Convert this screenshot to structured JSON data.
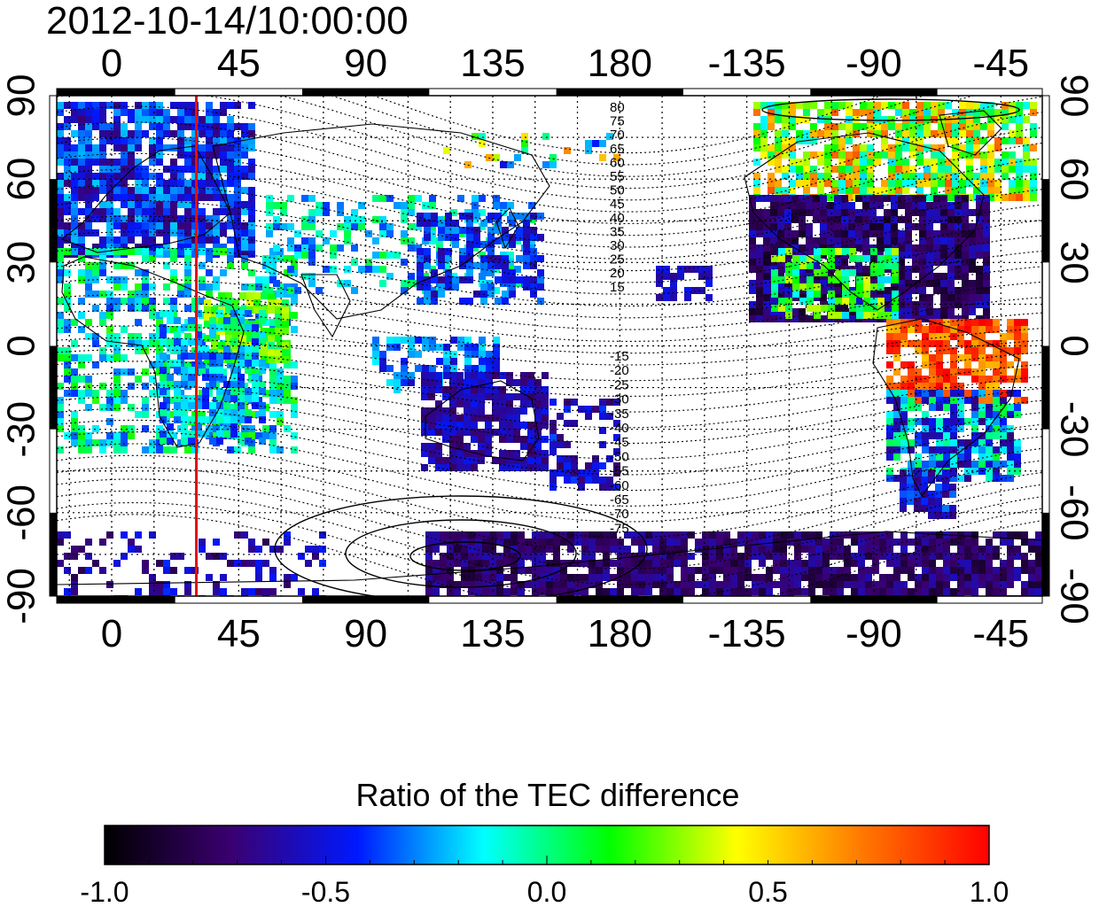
{
  "timestamp": "2012-10-14/10:00:00",
  "map": {
    "top_lon_labels": [
      "0",
      "45",
      "90",
      "135",
      "180",
      "-135",
      "-90",
      "-45"
    ],
    "bottom_lon_labels": [
      "0",
      "45",
      "90",
      "135",
      "180",
      "-135",
      "-90",
      "-45"
    ],
    "left_lat_labels": [
      "90",
      "60",
      "30",
      "0",
      "-30",
      "-60",
      "-90"
    ],
    "right_lat_labels": [
      "90",
      "60",
      "30",
      "0",
      "-30",
      "-60",
      "-90"
    ],
    "north_contour_labels": [
      "80",
      "75",
      "70",
      "65",
      "60",
      "55",
      "50",
      "45",
      "40",
      "35",
      "30",
      "25",
      "20",
      "15"
    ],
    "south_contour_labels": [
      "-15",
      "-20",
      "-25",
      "-30",
      "-35",
      "-40",
      "-45",
      "-50",
      "-55",
      "-60",
      "-65",
      "-70",
      "-75"
    ],
    "marker_line": {
      "longitude": 30,
      "color": "#e01010"
    }
  },
  "colorbar": {
    "title": "Ratio of the TEC difference",
    "tick_labels": [
      "-1.0",
      "-0.5",
      "0.0",
      "0.5",
      "1.0"
    ],
    "min": -1.0,
    "max": 1.0,
    "stops": [
      "#000000",
      "#3a0070",
      "#0018ff",
      "#00ffff",
      "#00ff00",
      "#ffff00",
      "#ff7800",
      "#ff0000"
    ]
  }
}
